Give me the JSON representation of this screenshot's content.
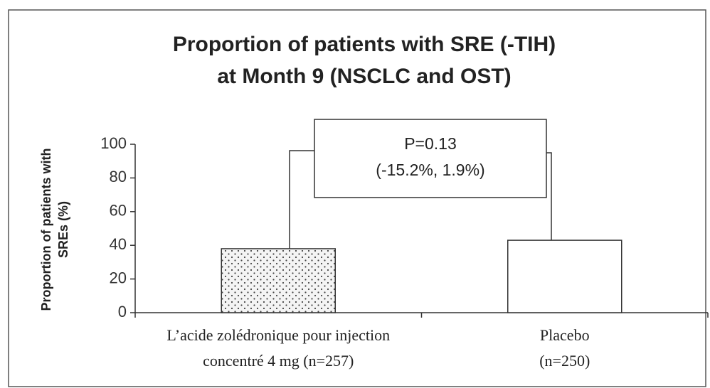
{
  "chart_data": {
    "type": "bar",
    "title": [
      "Proportion of patients with SRE (-TIH)",
      "at Month 9 (NSCLC and OST)"
    ],
    "y_label": [
      "Proportion of patients with",
      "SREs (%)"
    ],
    "categories": [
      [
        "L’acide zolédronique pour injection",
        "concentré 4 mg (n=257)"
      ],
      [
        "Placebo",
        "(n=250)"
      ]
    ],
    "values": [
      38,
      43
    ],
    "colors": [
      "#f4f4f4",
      "#ffffff"
    ],
    "patterns": [
      "dots",
      "none"
    ],
    "annotation": [
      "P=0.13",
      "(-15.2%, 1.9%)"
    ],
    "ylim": [
      0,
      100
    ],
    "yticks": [
      0,
      20,
      40,
      60,
      80,
      100
    ],
    "grid": false
  }
}
